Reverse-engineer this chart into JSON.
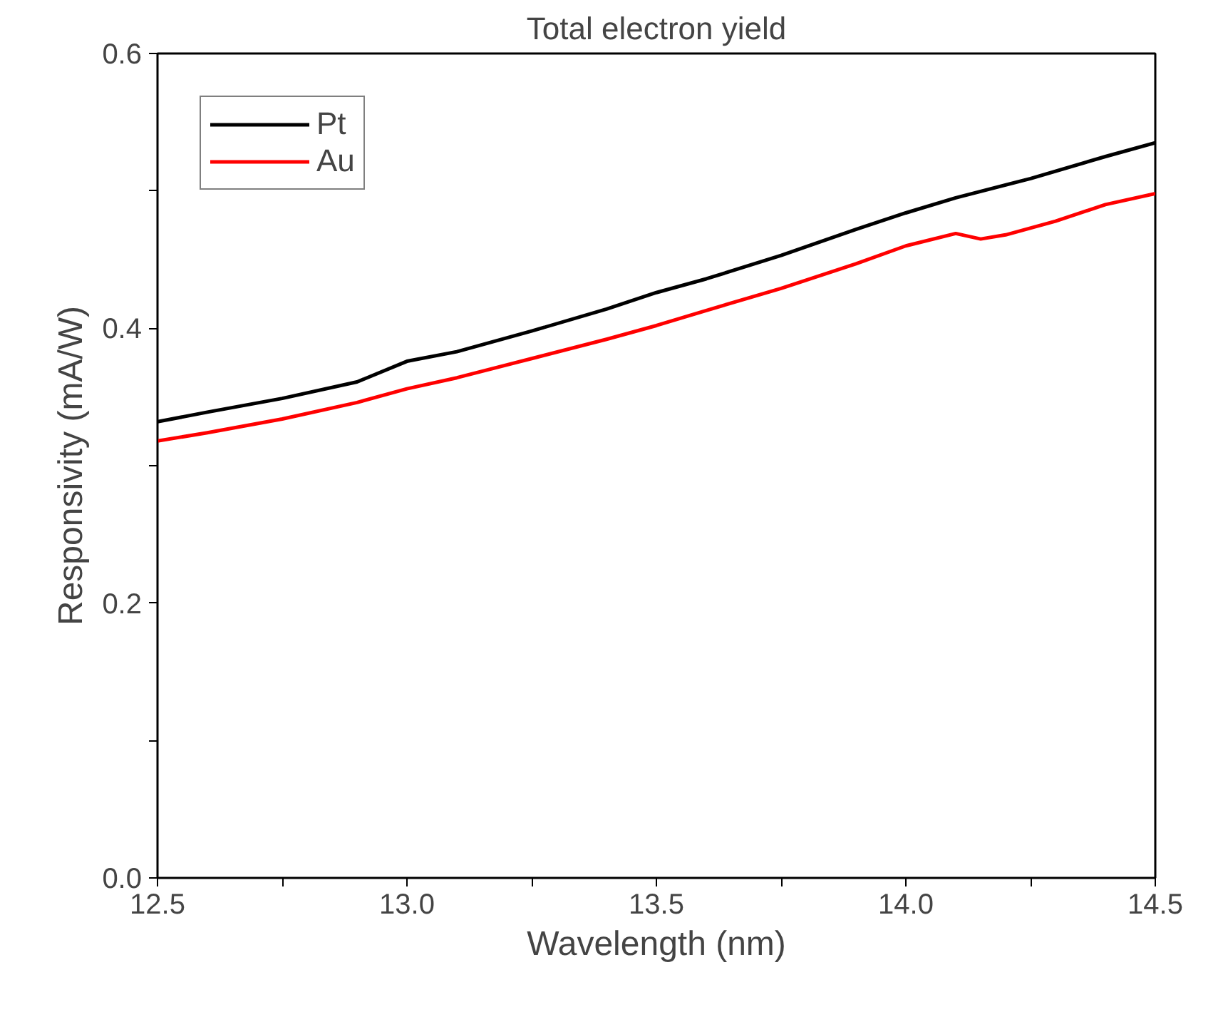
{
  "chart_data": {
    "type": "line",
    "title": "Total electron yield",
    "xlabel": "Wavelength (nm)",
    "ylabel": "Responsivity (mA/W)",
    "xlim": [
      12.5,
      14.5
    ],
    "ylim": [
      0,
      0.6
    ],
    "xticks": [
      12.5,
      {
        "value": 12.75,
        "label": null
      },
      "13.0",
      {
        "value": 13.25,
        "label": null
      },
      13.5,
      {
        "value": 13.75,
        "label": null
      },
      "14.0",
      {
        "value": 14.25,
        "label": null
      },
      14.5
    ],
    "yticks": [
      "0.0",
      {
        "value": 0.1,
        "label": null
      },
      0.2,
      {
        "value": 0.3,
        "label": null
      },
      0.4,
      {
        "value": 0.5,
        "label": null
      },
      0.6
    ],
    "legend": "top left",
    "grid": false,
    "line_style": "solid",
    "marker": "none",
    "series": [
      {
        "name": "Pt",
        "color": "#000000",
        "x": [
          12.5,
          12.6,
          12.75,
          12.9,
          13.0,
          13.1,
          13.25,
          13.4,
          13.5,
          13.6,
          13.75,
          13.9,
          14.0,
          14.1,
          14.25,
          14.4,
          14.5
        ],
        "values": [
          0.332,
          0.339,
          0.349,
          0.361,
          0.376,
          0.383,
          0.398,
          0.414,
          0.426,
          0.436,
          0.453,
          0.472,
          0.484,
          0.495,
          0.509,
          0.525,
          0.535
        ]
      },
      {
        "name": "Au",
        "color": "#ff0000",
        "x": [
          12.5,
          12.6,
          12.75,
          12.9,
          13.0,
          13.1,
          13.25,
          13.4,
          13.5,
          13.6,
          13.75,
          13.9,
          14.0,
          14.1,
          14.15,
          14.2,
          14.3,
          14.4,
          14.5
        ],
        "values": [
          0.318,
          0.324,
          0.334,
          0.346,
          0.356,
          0.364,
          0.378,
          0.392,
          0.402,
          0.413,
          0.429,
          0.447,
          0.46,
          0.469,
          0.465,
          0.468,
          0.478,
          0.49,
          0.498
        ]
      }
    ]
  }
}
